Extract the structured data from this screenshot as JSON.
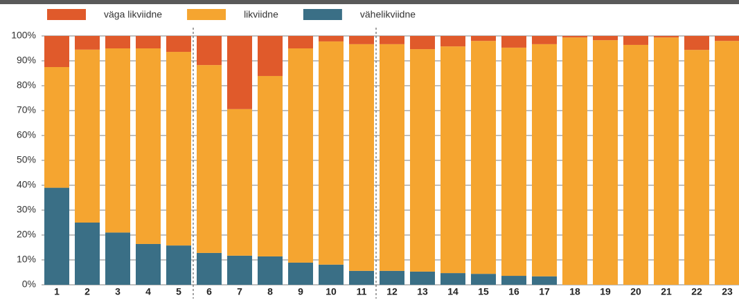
{
  "chart_data": {
    "type": "stacked_bar",
    "categories": [
      "1",
      "2",
      "3",
      "4",
      "5",
      "6",
      "7",
      "8",
      "9",
      "10",
      "11",
      "12",
      "13",
      "14",
      "15",
      "16",
      "17",
      "18",
      "19",
      "20",
      "21",
      "22",
      "23"
    ],
    "series": [
      {
        "name": "vähelikviidne",
        "color": "#3a6f86",
        "values": [
          39,
          25,
          21,
          16.4,
          15.8,
          12.8,
          11.7,
          11.4,
          8.9,
          8.1,
          5.6,
          5.6,
          5.3,
          4.7,
          4.4,
          3.6,
          3.4,
          0,
          0,
          0,
          0,
          0,
          0
        ]
      },
      {
        "name": "likviidne",
        "color": "#f5a530",
        "values": [
          48.5,
          69.5,
          74,
          78.6,
          77.8,
          75.5,
          58.9,
          72.5,
          86.1,
          89.7,
          91.1,
          91.1,
          89.4,
          91.1,
          93.6,
          91.7,
          93.3,
          99.4,
          98.3,
          96.4,
          99.4,
          94.4,
          98
        ]
      },
      {
        "name": "väga likviidne",
        "color": "#e05a2b",
        "values": [
          12.5,
          5.5,
          5,
          5,
          6.4,
          11.7,
          29.4,
          16.1,
          5,
          2.2,
          3.3,
          3.3,
          5.3,
          4.2,
          2,
          4.7,
          3.3,
          0.6,
          1.7,
          3.6,
          0.6,
          5.6,
          2
        ]
      }
    ],
    "legend_order": [
      2,
      1,
      0
    ],
    "ylim": [
      0,
      100
    ],
    "yticks": [
      {
        "value": 0,
        "label": "0%"
      },
      {
        "value": 10,
        "label": "10%"
      },
      {
        "value": 20,
        "label": "20%"
      },
      {
        "value": 30,
        "label": "30%"
      },
      {
        "value": 40,
        "label": "40%"
      },
      {
        "value": 50,
        "label": "50%"
      },
      {
        "value": 60,
        "label": "60%"
      },
      {
        "value": 70,
        "label": "70%"
      },
      {
        "value": 80,
        "label": "80%"
      },
      {
        "value": 90,
        "label": "90%"
      },
      {
        "value": 100,
        "label": "100%"
      }
    ],
    "grid": true
  }
}
